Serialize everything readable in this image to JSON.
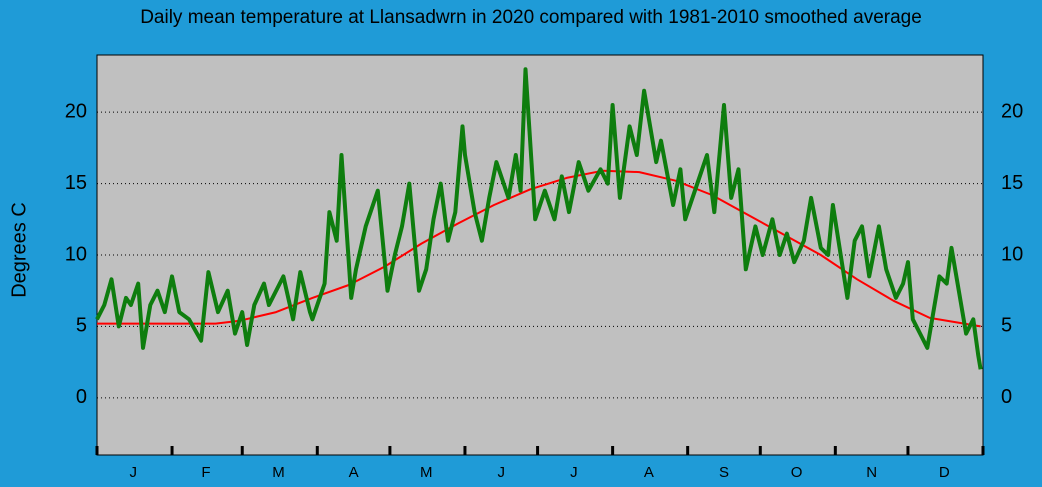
{
  "chart_data": {
    "type": "line",
    "title": "Daily mean temperature at Llansadwrn in 2020 compared with 1981-2010 smoothed average",
    "y_label": "Degrees  C",
    "xlim": [
      1,
      367
    ],
    "ylim": [
      -4,
      24
    ],
    "yticks": [
      0,
      5,
      10,
      15,
      20
    ],
    "xticks": [
      1,
      32,
      61,
      92,
      122,
      153,
      183,
      214,
      245,
      275,
      306,
      336,
      367
    ],
    "month_labels": [
      {
        "value": 16,
        "label": "J"
      },
      {
        "value": 46,
        "label": "F"
      },
      {
        "value": 76,
        "label": "M"
      },
      {
        "value": 107,
        "label": "A"
      },
      {
        "value": 137,
        "label": "M"
      },
      {
        "value": 168,
        "label": "J"
      },
      {
        "value": 198,
        "label": "J"
      },
      {
        "value": 229,
        "label": "A"
      },
      {
        "value": 260,
        "label": "S"
      },
      {
        "value": 290,
        "label": "O"
      },
      {
        "value": 321,
        "label": "N"
      },
      {
        "value": 351,
        "label": "D"
      }
    ],
    "grid": true,
    "background": "#c0c0c0",
    "series": [
      {
        "name": "2020",
        "color": "#0e7d0e",
        "x": [
          1,
          4,
          7,
          10,
          13,
          15,
          18,
          20,
          23,
          26,
          29,
          32,
          35,
          39,
          44,
          47,
          51,
          55,
          58,
          61,
          63,
          66,
          70,
          72,
          78,
          82,
          85,
          89,
          90,
          95,
          97,
          100,
          102,
          106,
          108,
          112,
          117,
          119,
          121,
          124,
          127,
          130,
          134,
          137,
          140,
          143,
          146,
          149,
          152,
          153,
          157,
          160,
          163,
          166,
          171,
          174,
          176,
          178,
          182,
          186,
          190,
          193,
          196,
          200,
          204,
          209,
          212,
          214,
          217,
          221,
          224,
          227,
          232,
          234,
          239,
          242,
          244,
          248,
          253,
          256,
          260,
          263,
          266,
          269,
          273,
          276,
          280,
          283,
          286,
          289,
          293,
          296,
          300,
          303,
          305,
          311,
          314,
          317,
          320,
          324,
          327,
          331,
          334,
          336,
          338,
          341,
          344,
          349,
          352,
          354,
          357,
          360,
          363,
          365,
          366
        ],
        "values": [
          5.5,
          6.5,
          8.3,
          5,
          7,
          6.5,
          8,
          3.5,
          6.5,
          7.5,
          6,
          8.5,
          6,
          5.5,
          4,
          8.8,
          6,
          7.5,
          4.5,
          6,
          3.7,
          6.5,
          8,
          6.5,
          8.5,
          5.5,
          8.8,
          6,
          5.5,
          8,
          13,
          11,
          17,
          7,
          9,
          12,
          14.5,
          11,
          7.5,
          10,
          12,
          15,
          7.5,
          9,
          12.5,
          15,
          11,
          13,
          19,
          17,
          13,
          11,
          14,
          16.5,
          14,
          17,
          14.5,
          23,
          12.5,
          14.5,
          12.5,
          15.5,
          13,
          16.5,
          14.5,
          16,
          15,
          20.5,
          14,
          19,
          17,
          21.5,
          16.5,
          18,
          13.5,
          16,
          12.5,
          14.5,
          17,
          13,
          20.5,
          14,
          16,
          9,
          12,
          10,
          12.5,
          10,
          11.5,
          9.5,
          11,
          14,
          10.5,
          10,
          13.5,
          7,
          11,
          12,
          8.5,
          12,
          9,
          7,
          8,
          9.5,
          5.5,
          4.5,
          3.5,
          8.5,
          8,
          10.5,
          7.5,
          4.5,
          5.5,
          3,
          2
        ]
      },
      {
        "name": "1981-2010",
        "color": "#ff0000",
        "x": [
          1,
          30,
          50,
          60,
          75,
          90,
          105,
          120,
          135,
          150,
          165,
          180,
          195,
          210,
          225,
          240,
          255,
          270,
          285,
          300,
          315,
          330,
          345,
          366
        ],
        "values": [
          5.2,
          5.2,
          5.2,
          5.4,
          6.0,
          7.0,
          7.9,
          9.2,
          10.8,
          12.2,
          13.5,
          14.6,
          15.4,
          15.9,
          15.8,
          15.2,
          14.2,
          12.8,
          11.4,
          10.0,
          8.3,
          6.8,
          5.6,
          5.0
        ]
      }
    ]
  }
}
